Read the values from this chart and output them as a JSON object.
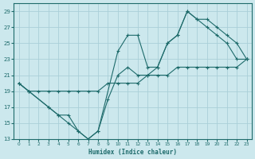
{
  "xlabel": "Humidex (Indice chaleur)",
  "bg_color": "#cce8ed",
  "grid_color": "#aacfd8",
  "line_color": "#1e6b6b",
  "xlim": [
    -0.5,
    23.5
  ],
  "ylim": [
    13,
    30
  ],
  "xticks": [
    0,
    1,
    2,
    3,
    4,
    5,
    6,
    7,
    8,
    9,
    10,
    11,
    12,
    13,
    14,
    15,
    16,
    17,
    18,
    19,
    20,
    21,
    22,
    23
  ],
  "yticks": [
    13,
    15,
    17,
    19,
    21,
    23,
    25,
    27,
    29
  ],
  "line1_x": [
    0,
    1,
    3,
    4,
    5,
    6,
    7,
    8,
    9,
    10,
    11,
    12,
    13,
    14,
    15,
    16,
    17,
    18,
    19,
    20,
    21,
    22,
    23
  ],
  "line1_y": [
    20,
    19,
    17,
    16,
    16,
    14,
    13,
    14,
    18,
    21,
    22,
    21,
    21,
    22,
    25,
    26,
    29,
    28,
    27,
    26,
    25,
    23,
    23
  ],
  "line2_x": [
    0,
    1,
    3,
    4,
    5,
    6,
    7,
    8,
    10,
    11,
    12,
    13,
    14,
    15,
    16,
    17,
    18,
    19,
    20,
    21,
    22,
    23
  ],
  "line2_y": [
    20,
    19,
    17,
    16,
    15,
    14,
    13,
    14,
    24,
    26,
    26,
    22,
    22,
    25,
    26,
    29,
    28,
    28,
    27,
    26,
    25,
    23
  ],
  "line3_x": [
    0,
    1,
    2,
    3,
    4,
    5,
    6,
    7,
    8,
    9,
    10,
    11,
    12,
    13,
    14,
    15,
    16,
    17,
    18,
    19,
    20,
    21,
    22,
    23
  ],
  "line3_y": [
    20,
    19,
    19,
    19,
    19,
    19,
    19,
    19,
    19,
    20,
    20,
    20,
    20,
    21,
    21,
    21,
    22,
    22,
    22,
    22,
    22,
    22,
    22,
    23
  ]
}
